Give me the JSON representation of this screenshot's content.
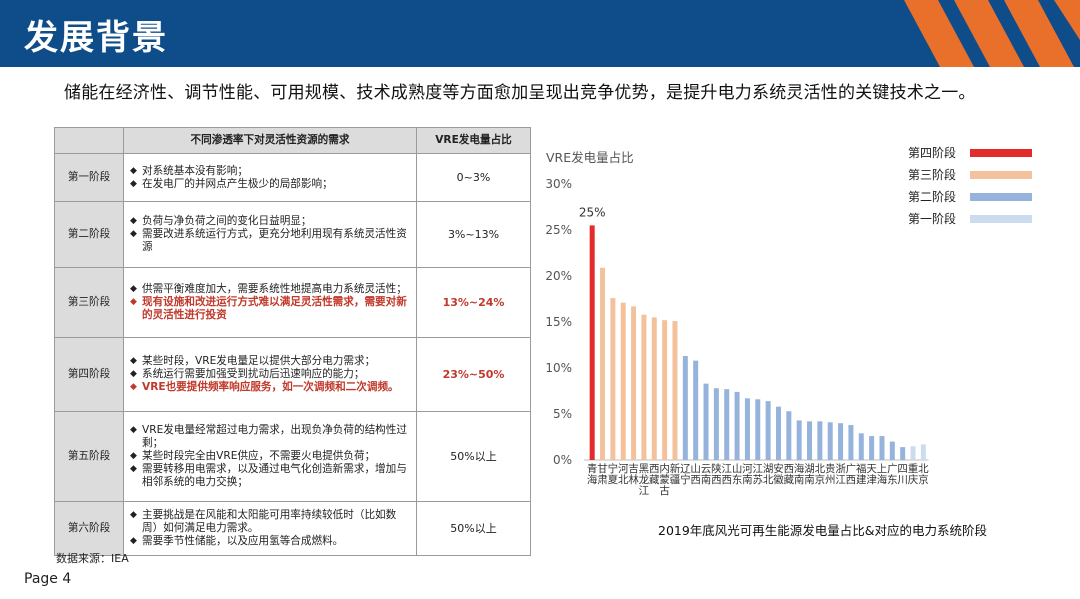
{
  "header": {
    "title": "发展背景"
  },
  "subtitle": "储能在经济性、调节性能、可用规模、技术成熟度等方面愈加呈现出竞争优势，是提升电力系统灵活性的关键技术之一。",
  "table": {
    "headers": [
      "",
      "不同渗透率下对灵活性资源的需求",
      "VRE发电量占比"
    ],
    "rows": [
      {
        "stage": "第一阶段",
        "ratio": "0~3%",
        "ratio_red": false,
        "bullets": [
          {
            "text": "对系统基本没有影响；",
            "red": false
          },
          {
            "text": "在发电厂的并网点产生极少的局部影响；",
            "red": false
          }
        ]
      },
      {
        "stage": "第二阶段",
        "ratio": "3%~13%",
        "ratio_red": false,
        "bullets": [
          {
            "text": "负荷与净负荷之间的变化日益明显；",
            "red": false
          },
          {
            "text": "需要改进系统运行方式，更充分地利用现有系统灵活性资源",
            "red": false
          }
        ]
      },
      {
        "stage": "第三阶段",
        "ratio": "13%~24%",
        "ratio_red": true,
        "bullets": [
          {
            "text": "供需平衡难度加大，需要系统性地提高电力系统灵活性；",
            "red": false
          },
          {
            "text": "现有设施和改进运行方式难以满足灵活性需求，需要对新的灵活性进行投资",
            "red": true
          }
        ]
      },
      {
        "stage": "第四阶段",
        "ratio": "23%~50%",
        "ratio_red": true,
        "bullets": [
          {
            "text": "某些时段，VRE发电量足以提供大部分电力需求；",
            "red": false
          },
          {
            "text": "系统运行需要加强受到扰动后迅速响应的能力；",
            "red": false
          },
          {
            "text": "VRE也要提供频率响应服务，如一次调频和二次调频。",
            "red": true
          }
        ]
      },
      {
        "stage": "第五阶段",
        "ratio": "50%以上",
        "ratio_red": false,
        "bullets": [
          {
            "text": "VRE发电量经常超过电力需求，出现负净负荷的结构性过剩；",
            "red": false
          },
          {
            "text": "某些时段完全由VRE供应，不需要火电提供负荷；",
            "red": false
          },
          {
            "text": "需要转移用电需求，以及通过电气化创造新需求，增加与相邻系统的电力交换；",
            "red": false
          }
        ]
      },
      {
        "stage": "第六阶段",
        "ratio": "50%以上",
        "ratio_red": false,
        "bullets": [
          {
            "text": "主要挑战是在风能和太阳能可用率持续较低时（比如数周）如何满足电力需求。",
            "red": false
          },
          {
            "text": "需要季节性储能，以及应用氢等合成燃料。",
            "red": false
          }
        ]
      }
    ]
  },
  "source": "数据来源：IEA",
  "page": "Page 4",
  "chart_data": {
    "type": "bar",
    "ylabel": "VRE发电量占比",
    "ylim": [
      0,
      30
    ],
    "yticks": [
      "0%",
      "5%",
      "10%",
      "15%",
      "20%",
      "25%",
      "30%"
    ],
    "grid": false,
    "legend_position": "top-right",
    "caption": "2019年底风光可再生能源发电量占比&对应的电力系统阶段",
    "annotation": "25%",
    "stages": [
      {
        "name": "第四阶段",
        "color": "#e32b2b"
      },
      {
        "name": "第三阶段",
        "color": "#f3c29c"
      },
      {
        "name": "第二阶段",
        "color": "#95b3db"
      },
      {
        "name": "第一阶段",
        "color": "#ccdcef"
      }
    ],
    "categories": [
      "青海",
      "甘肃",
      "宁夏",
      "河北",
      "吉林",
      "黑龙江",
      "西藏",
      "内蒙古",
      "新疆",
      "辽宁",
      "山西",
      "云南",
      "陕西",
      "江西",
      "山东",
      "河南",
      "江苏",
      "湖北",
      "安徽",
      "西藏",
      "海南",
      "湖南",
      "北京",
      "贵州",
      "浙江",
      "广西",
      "福建",
      "天津",
      "上海",
      "广东",
      "四川",
      "重庆",
      "北京"
    ],
    "values": [
      25.5,
      20.9,
      17.6,
      17.1,
      16.7,
      15.8,
      15.5,
      15.2,
      15.1,
      11.3,
      10.8,
      8.3,
      7.8,
      7.7,
      7.4,
      6.7,
      6.6,
      6.4,
      5.8,
      5.3,
      4.3,
      4.2,
      4.2,
      4.1,
      4.0,
      3.8,
      2.9,
      2.6,
      2.6,
      2.0,
      1.4,
      1.5,
      1.7
    ],
    "stage_index": [
      0,
      1,
      1,
      1,
      1,
      1,
      1,
      1,
      1,
      2,
      2,
      2,
      2,
      2,
      2,
      2,
      2,
      2,
      2,
      2,
      2,
      2,
      2,
      2,
      2,
      2,
      2,
      2,
      2,
      2,
      2,
      3,
      3
    ]
  }
}
